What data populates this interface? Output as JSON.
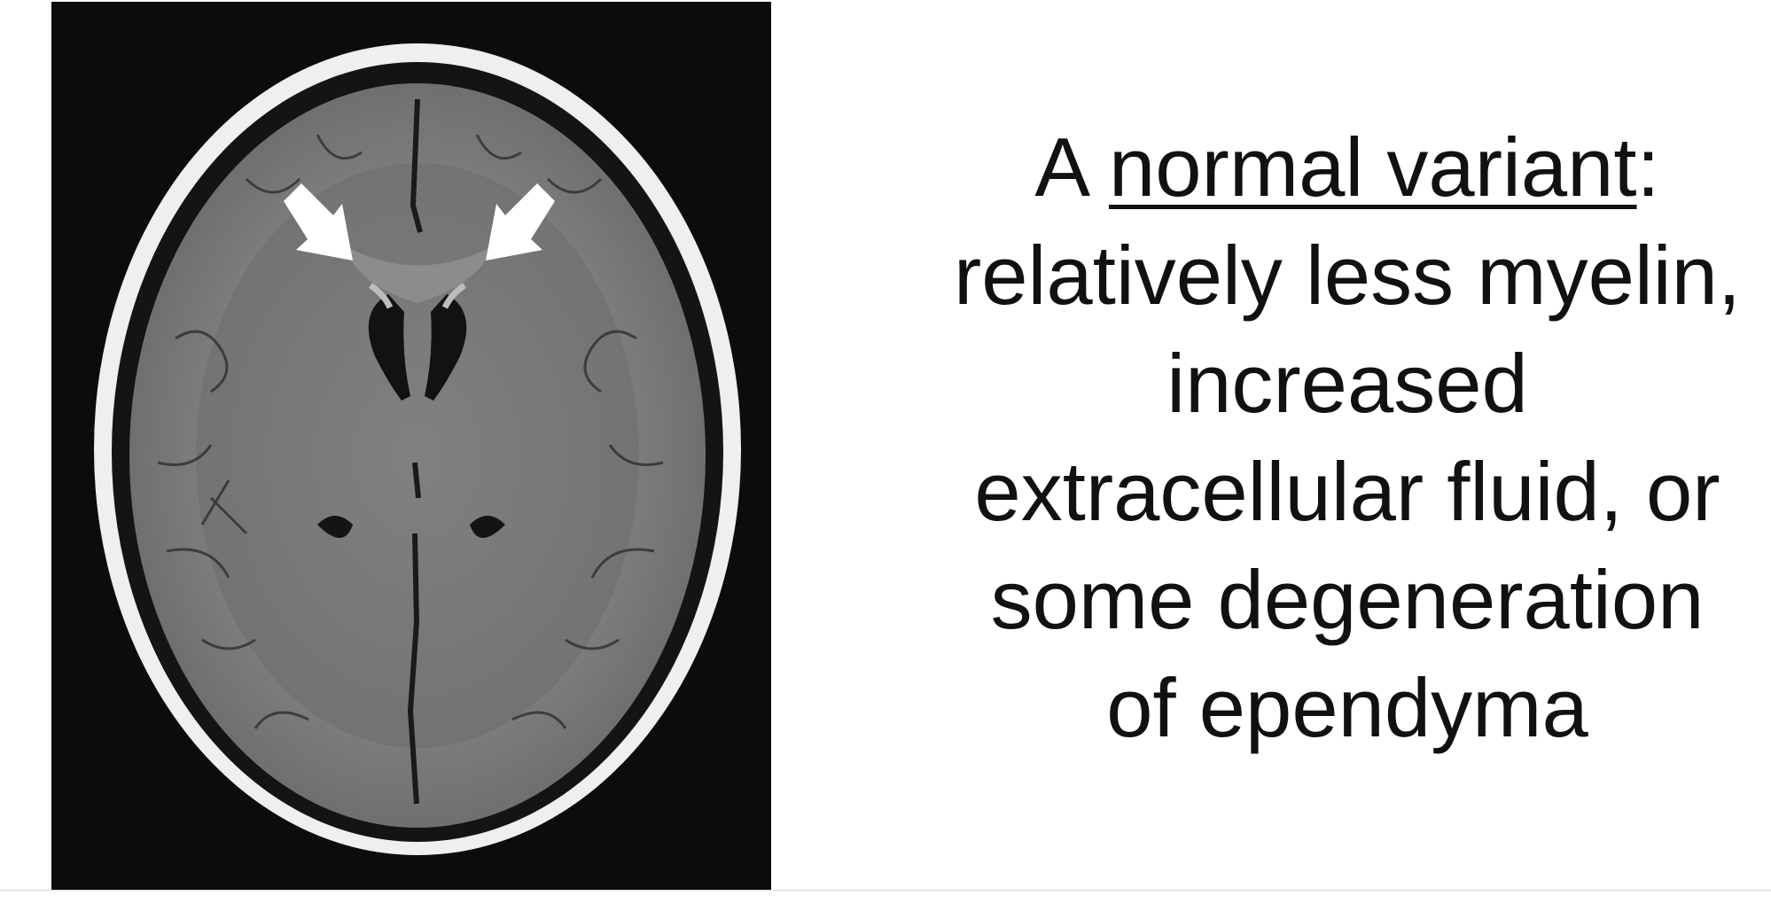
{
  "slide": {
    "image": {
      "subject": "axial FLAIR MRI of the brain",
      "annotation_arrows": [
        "arrow-left-frontal-horn",
        "arrow-right-frontal-horn"
      ],
      "colors": {
        "background": "#0c0c0c",
        "scalp": "#f2f2f2",
        "brain": "#808080",
        "csf": "#111111",
        "arrows": "#ffffff"
      }
    },
    "caption": {
      "prefix": "A ",
      "term": "normal variant",
      "suffix": ":",
      "lines": [
        "relatively less myelin,",
        "increased",
        "extracellular fluid, or",
        "some degeneration",
        "of ependyma"
      ]
    }
  }
}
